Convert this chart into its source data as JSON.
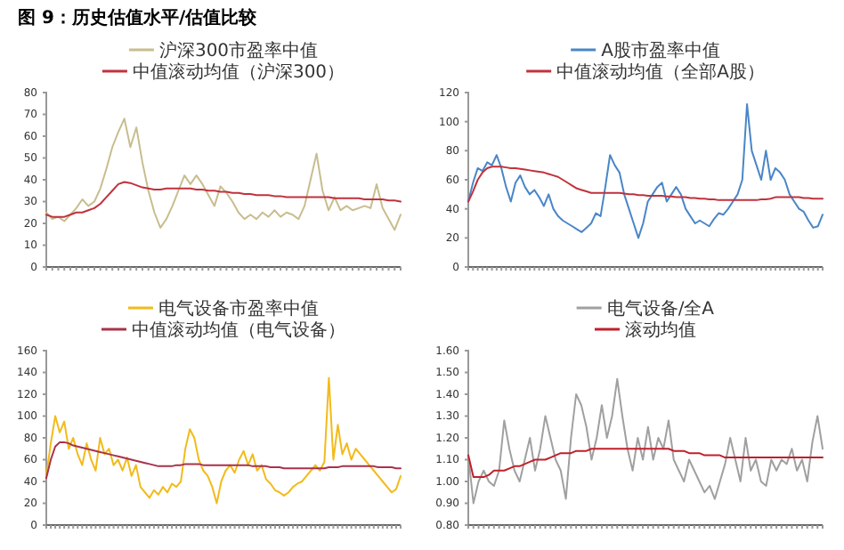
{
  "chart_data": [
    {
      "type": "line",
      "title": "图 9：历史估值水平/估值比较",
      "categories": [
        null,
        null,
        null,
        null,
        null,
        null,
        null,
        null,
        null,
        null,
        null,
        null,
        null,
        null,
        null,
        null,
        null,
        null,
        null,
        null,
        null,
        null,
        null,
        null,
        null,
        null,
        null,
        null,
        null,
        null,
        null,
        null,
        null,
        null,
        null,
        null,
        null,
        null,
        null,
        null,
        null,
        null,
        null,
        null,
        null,
        null,
        null,
        null,
        null,
        null,
        null,
        null,
        null,
        null,
        null,
        null,
        null,
        null,
        null,
        null
      ],
      "ylim": [
        0,
        80
      ],
      "yticks": [
        0,
        10,
        20,
        30,
        40,
        50,
        60,
        70,
        80
      ],
      "legend": "top",
      "tick_labels": "y",
      "series": [
        {
          "name": "沪深300市盈率中值",
          "color": "#c8bd8e",
          "values": [
            25,
            22,
            23,
            21,
            24,
            27,
            31,
            28,
            30,
            36,
            45,
            55,
            62,
            68,
            55,
            64,
            48,
            35,
            25,
            18,
            22,
            28,
            35,
            42,
            38,
            42,
            38,
            33,
            28,
            37,
            34,
            30,
            25,
            22,
            24,
            22,
            25,
            23,
            26,
            23,
            25,
            24,
            22,
            28,
            40,
            52,
            35,
            26,
            32,
            26,
            28,
            26,
            27,
            28,
            27,
            38,
            27,
            22,
            17,
            24
          ]
        },
        {
          "name": "中值滚动均值（沪深300）",
          "color": "#c0323c",
          "values": [
            24,
            23,
            23,
            23,
            24,
            25,
            25,
            26,
            27,
            29,
            32,
            35,
            38,
            39,
            38.5,
            37.5,
            36.5,
            36,
            35.5,
            35.5,
            36,
            36,
            36,
            36,
            36,
            35.5,
            35.5,
            35,
            35,
            34.5,
            34.5,
            34,
            34,
            33.5,
            33.5,
            33,
            33,
            33,
            32.5,
            32.5,
            32,
            32,
            32,
            32,
            32,
            32,
            32,
            32,
            31.5,
            31.5,
            31.5,
            31.5,
            31.5,
            31,
            31,
            31,
            31,
            30.5,
            30.5,
            30
          ]
        }
      ]
    },
    {
      "type": "line",
      "categories": [
        null,
        null,
        null,
        null,
        null,
        null,
        null,
        null,
        null,
        null,
        null,
        null,
        null,
        null,
        null,
        null,
        null,
        null,
        null,
        null,
        null,
        null,
        null,
        null,
        null,
        null,
        null,
        null,
        null,
        null,
        null,
        null,
        null,
        null,
        null,
        null,
        null,
        null,
        null,
        null,
        null,
        null,
        null,
        null,
        null,
        null,
        null,
        null,
        null,
        null,
        null,
        null,
        null,
        null,
        null,
        null,
        null,
        null,
        null,
        null,
        null,
        null,
        null,
        null,
        null,
        null,
        null,
        null,
        null,
        null,
        null,
        null,
        null,
        null,
        null,
        null
      ],
      "ylim": [
        0,
        120
      ],
      "yticks": [
        0,
        20,
        40,
        60,
        80,
        100,
        120
      ],
      "legend": "top",
      "tick_labels": "y",
      "series": [
        {
          "name": "A股市盈率中值",
          "color": "#4a86c8",
          "values": [
            45,
            58,
            68,
            66,
            72,
            70,
            77,
            68,
            55,
            45,
            58,
            63,
            55,
            50,
            53,
            48,
            42,
            50,
            40,
            35,
            32,
            30,
            28,
            26,
            24,
            27,
            30,
            37,
            35,
            55,
            77,
            70,
            65,
            50,
            40,
            30,
            20,
            30,
            45,
            50,
            55,
            58,
            45,
            50,
            55,
            50,
            40,
            35,
            30,
            32,
            30,
            28,
            33,
            37,
            36,
            40,
            45,
            50,
            60,
            112,
            80,
            70,
            60,
            80,
            60,
            68,
            65,
            60,
            50,
            45,
            40,
            38,
            32,
            27,
            28,
            36
          ]
        },
        {
          "name": "中值滚动均值（全部A股）",
          "color": "#c0323c",
          "values": [
            45,
            52,
            60,
            65,
            68,
            69,
            69,
            69,
            68.5,
            68,
            68,
            67.5,
            67,
            66.5,
            66,
            65.5,
            65,
            64,
            63,
            62,
            60,
            58,
            56,
            54,
            53,
            52,
            51,
            51,
            51,
            51,
            51,
            51,
            51,
            50.5,
            50,
            50,
            49.5,
            49.5,
            49,
            49,
            49,
            49,
            48.5,
            48.5,
            48,
            48,
            48,
            47.5,
            47.5,
            47,
            47,
            46.5,
            46.5,
            46,
            46,
            46,
            46,
            46,
            46,
            46,
            46,
            46,
            46.5,
            46.5,
            47,
            48,
            48,
            48,
            48,
            48,
            48,
            47.5,
            47.5,
            47,
            47,
            47
          ]
        }
      ]
    },
    {
      "type": "line",
      "categories": [
        null,
        null,
        null,
        null,
        null,
        null,
        null,
        null,
        null,
        null,
        null,
        null,
        null,
        null,
        null,
        null,
        null,
        null,
        null,
        null,
        null,
        null,
        null,
        null,
        null,
        null,
        null,
        null,
        null,
        null,
        null,
        null,
        null,
        null,
        null,
        null,
        null,
        null,
        null,
        null,
        null,
        null,
        null,
        null,
        null,
        null,
        null,
        null,
        null,
        null,
        null,
        null,
        null,
        null,
        null,
        null,
        null,
        null,
        null,
        null,
        null,
        null,
        null,
        null,
        null,
        null,
        null,
        null,
        null,
        null,
        null,
        null,
        null,
        null,
        null,
        null,
        null,
        null,
        null,
        null
      ],
      "ylim": [
        0,
        160
      ],
      "yticks": [
        0,
        20,
        40,
        60,
        80,
        100,
        120,
        140,
        160
      ],
      "legend": "top",
      "tick_labels": "y",
      "series": [
        {
          "name": "电气设备市盈率中值",
          "color": "#f2bb1b",
          "values": [
            45,
            75,
            100,
            85,
            95,
            70,
            80,
            65,
            55,
            75,
            60,
            50,
            80,
            65,
            70,
            55,
            60,
            50,
            62,
            45,
            55,
            35,
            30,
            25,
            32,
            28,
            35,
            30,
            38,
            35,
            40,
            70,
            88,
            80,
            60,
            50,
            45,
            35,
            20,
            40,
            50,
            55,
            48,
            60,
            68,
            55,
            65,
            50,
            55,
            42,
            38,
            32,
            30,
            27,
            30,
            35,
            38,
            40,
            45,
            50,
            55,
            50,
            58,
            135,
            60,
            92,
            65,
            75,
            60,
            70,
            65,
            60,
            55,
            50,
            45,
            40,
            35,
            30,
            33,
            45
          ]
        },
        {
          "name": "中值滚动均值（电气设备）",
          "color": "#a8324a",
          "values": [
            43,
            60,
            72,
            76,
            76,
            75,
            73,
            72,
            71,
            70,
            69,
            68,
            67,
            66,
            65,
            64,
            63,
            62,
            61,
            60,
            59,
            58,
            57,
            56,
            55,
            54,
            54,
            54,
            54,
            55,
            55,
            56,
            56,
            56,
            56,
            55,
            55,
            55,
            55,
            55,
            55,
            55,
            55,
            55,
            55,
            55,
            54,
            54,
            54,
            54,
            53,
            53,
            53,
            52,
            52,
            52,
            52,
            52,
            52,
            52,
            52,
            52,
            52,
            53,
            53,
            53,
            54,
            54,
            54,
            54,
            54,
            54,
            54,
            54,
            53,
            53,
            53,
            53,
            52,
            52
          ]
        }
      ]
    },
    {
      "type": "line",
      "categories": [
        null,
        null,
        null,
        null,
        null,
        null,
        null,
        null,
        null,
        null,
        null,
        null,
        null,
        null,
        null,
        null,
        null,
        null,
        null,
        null,
        null,
        null,
        null,
        null,
        null,
        null,
        null,
        null,
        null,
        null,
        null,
        null,
        null,
        null,
        null,
        null,
        null,
        null,
        null,
        null,
        null,
        null,
        null,
        null,
        null,
        null,
        null,
        null,
        null,
        null,
        null,
        null,
        null,
        null,
        null,
        null,
        null,
        null,
        null,
        null,
        null,
        null,
        null,
        null,
        null,
        null,
        null,
        null,
        null,
        null
      ],
      "ylim": [
        0.8,
        1.6
      ],
      "yticks": [
        {
          "value": 0.8,
          "label": "0.80"
        },
        {
          "value": 0.9,
          "label": "0.90"
        },
        {
          "value": 1,
          "label": "1.00"
        },
        {
          "value": 1.1,
          "label": "1.10"
        },
        {
          "value": 1.2,
          "label": "1.20"
        },
        {
          "value": 1.3,
          "label": "1.30"
        },
        {
          "value": 1.4,
          "label": "1.40"
        },
        {
          "value": 1.5,
          "label": "1.50"
        },
        {
          "value": 1.6,
          "label": "1.60"
        }
      ],
      "legend": "top",
      "tick_labels": "y",
      "series": [
        {
          "name": "电气设备/全A",
          "color": "#a0a0a0",
          "values": [
            1.12,
            0.9,
            1,
            1.05,
            1,
            0.98,
            1.05,
            1.28,
            1.15,
            1.05,
            1,
            1.1,
            1.2,
            1.05,
            1.15,
            1.3,
            1.2,
            1.1,
            1.05,
            0.92,
            1.2,
            1.4,
            1.35,
            1.25,
            1.1,
            1.2,
            1.35,
            1.2,
            1.3,
            1.47,
            1.3,
            1.15,
            1.05,
            1.2,
            1.1,
            1.25,
            1.1,
            1.2,
            1.15,
            1.28,
            1.1,
            1.05,
            1,
            1.1,
            1.05,
            1,
            0.95,
            0.98,
            0.92,
            1,
            1.08,
            1.2,
            1.1,
            1,
            1.2,
            1.05,
            1.1,
            1,
            0.98,
            1.1,
            1.05,
            1.1,
            1.08,
            1.15,
            1.05,
            1.1,
            1,
            1.18,
            1.3,
            1.15
          ]
        },
        {
          "name": "滚动均值",
          "color": "#c0202a",
          "values": [
            1.12,
            1.02,
            1.02,
            1.02,
            1.03,
            1.05,
            1.05,
            1.05,
            1.06,
            1.07,
            1.07,
            1.08,
            1.09,
            1.1,
            1.1,
            1.1,
            1.11,
            1.12,
            1.13,
            1.13,
            1.13,
            1.14,
            1.14,
            1.14,
            1.15,
            1.15,
            1.15,
            1.15,
            1.15,
            1.15,
            1.15,
            1.15,
            1.15,
            1.15,
            1.15,
            1.15,
            1.15,
            1.15,
            1.15,
            1.15,
            1.14,
            1.14,
            1.14,
            1.13,
            1.13,
            1.13,
            1.12,
            1.12,
            1.12,
            1.12,
            1.11,
            1.11,
            1.11,
            1.11,
            1.11,
            1.11,
            1.11,
            1.11,
            1.11,
            1.11,
            1.11,
            1.11,
            1.11,
            1.11,
            1.11,
            1.11,
            1.11,
            1.11,
            1.11,
            1.11
          ]
        }
      ]
    }
  ]
}
